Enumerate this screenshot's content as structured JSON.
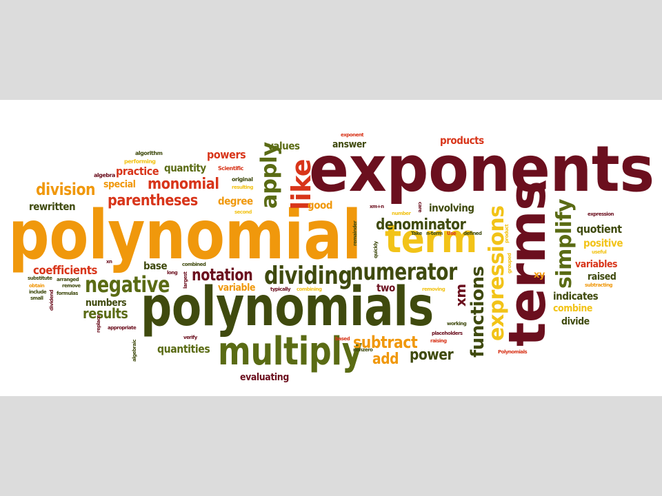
{
  "colors": {
    "background": "#dcdcdc",
    "panel": "#ffffff",
    "maroon": "#6b0f1e",
    "darkgreen": "#3f4a0e",
    "olive": "#5a6b14",
    "orange": "#f0980c",
    "yellow": "#f2c318",
    "red": "#d8351a",
    "brown": "#8a3a14"
  },
  "words": {
    "exponents": "exponents",
    "polynomial": "polynomial",
    "polynomials": "polynomials",
    "terms": "terms",
    "term": "term",
    "multiply": "multiply",
    "dividing": "dividing",
    "numerator": "numerator",
    "denominator": "denominator",
    "negative": "negative",
    "notation": "notation",
    "expressions": "expressions",
    "functions": "functions",
    "simplify": "simplify",
    "apply": "apply",
    "like": "like",
    "parentheses": "parentheses",
    "monomial": "monomial",
    "division": "division",
    "coefficients": "coefficients",
    "subtract": "subtract",
    "power": "power",
    "add": "add",
    "results": "results",
    "quantities": "quantities",
    "evaluating": "evaluating",
    "quantity": "quantity",
    "practice": "practice",
    "special": "special",
    "powers": "powers",
    "values": "values",
    "answer": "answer",
    "products": "products",
    "involving": "involving",
    "quotient": "quotient",
    "positive": "positive",
    "variables": "variables",
    "raised": "raised",
    "indicates": "indicates",
    "combine": "combine",
    "divide": "divide",
    "rewritten": "rewritten",
    "degree": "degree",
    "good": "good",
    "base": "base",
    "variable": "variable",
    "two": "two",
    "numbers": "numbers",
    "xm": "xm",
    "xy": "xy",
    "algorithm": "algorithm",
    "performing": "performing",
    "algebra": "algebra",
    "scientific": "Scientific",
    "original": "original",
    "resulting": "resulting",
    "second": "second",
    "exponent": "exponent",
    "xmn": "xm+n",
    "number": "number",
    "care": "care",
    "remainder": "remainder",
    "quickly": "quickly",
    "take": "Take",
    "nterm": "n-term",
    "use": "Use",
    "defined": "defined",
    "product": "product",
    "grouped": "grouped",
    "expression": "expression",
    "useful": "useful",
    "subtracting": "subtracting",
    "xn": "xn",
    "combined": "combined",
    "long": "long",
    "largest": "largest",
    "substitute": "substitute",
    "arranged": "arranged",
    "obtain": "obtain",
    "remove": "remove",
    "include": "include",
    "formulas": "formulas",
    "small": "small",
    "dividend": "dividend",
    "typically": "typically",
    "combining": "combining",
    "removing": "removing",
    "working": "working",
    "placeholders": "placeholders",
    "raising": "raising",
    "based": "based",
    "nonzero": "nonzero",
    "polynomialsCap": "Polynomials",
    "replace": "replace",
    "appropriate": "appropriate",
    "algebraic": "algebraic",
    "verify": "verify"
  }
}
